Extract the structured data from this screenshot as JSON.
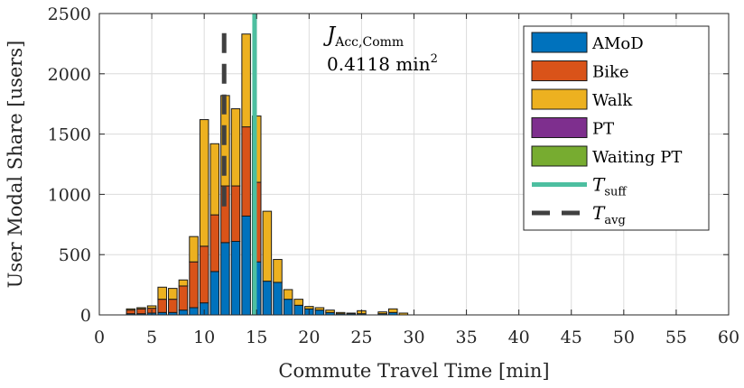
{
  "chart_data": {
    "type": "bar",
    "stacked": true,
    "xlabel": "Commute Travel Time [min]",
    "ylabel": "User Modal Share [users]",
    "xlim": [
      0,
      60
    ],
    "ylim": [
      0,
      2500
    ],
    "xticks": [
      0,
      5,
      10,
      15,
      20,
      25,
      30,
      35,
      40,
      45,
      50,
      55,
      60
    ],
    "yticks": [
      0,
      500,
      1000,
      1500,
      2000,
      2500
    ],
    "grid": true,
    "bin_width": 1,
    "x": [
      3,
      4,
      5,
      6,
      7,
      8,
      9,
      10,
      11,
      12,
      13,
      14,
      15,
      16,
      17,
      18,
      19,
      20,
      21,
      22,
      23,
      24,
      25,
      26,
      27,
      28,
      29,
      30
    ],
    "series": [
      {
        "name": "AMoD",
        "color": "#0072BD",
        "values": [
          10,
          10,
          15,
          20,
          20,
          40,
          60,
          100,
          360,
          600,
          610,
          820,
          440,
          280,
          270,
          130,
          80,
          50,
          40,
          20,
          10,
          10,
          10,
          0,
          10,
          20,
          0,
          0
        ]
      },
      {
        "name": "Bike",
        "color": "#D95319",
        "values": [
          30,
          40,
          40,
          110,
          110,
          200,
          380,
          470,
          470,
          470,
          460,
          740,
          660,
          0,
          0,
          0,
          0,
          0,
          0,
          0,
          0,
          0,
          0,
          0,
          0,
          0,
          0,
          0
        ]
      },
      {
        "name": "Walk",
        "color": "#EDB120",
        "values": [
          10,
          10,
          20,
          100,
          90,
          50,
          210,
          1050,
          590,
          750,
          640,
          770,
          550,
          0,
          0,
          0,
          0,
          0,
          0,
          0,
          0,
          0,
          0,
          0,
          0,
          0,
          0,
          0
        ]
      },
      {
        "name": "PT",
        "color": "#7E2F8E",
        "values": [
          0,
          0,
          0,
          0,
          0,
          0,
          0,
          0,
          0,
          0,
          0,
          0,
          0,
          0,
          0,
          0,
          0,
          0,
          0,
          0,
          0,
          0,
          0,
          0,
          0,
          0,
          0,
          0
        ]
      },
      {
        "name": "Waiting PT",
        "color": "#77AC30",
        "values": [
          0,
          0,
          0,
          0,
          0,
          0,
          0,
          0,
          0,
          0,
          0,
          0,
          0,
          0,
          0,
          0,
          0,
          0,
          0,
          0,
          0,
          0,
          0,
          0,
          0,
          0,
          0,
          0
        ]
      }
    ],
    "unstacked_bins": {
      "x": [
        16,
        17,
        18,
        19,
        20,
        21,
        22,
        23,
        24,
        25,
        26,
        27,
        28,
        29
      ],
      "totals": [
        860,
        460,
        210,
        130,
        70,
        60,
        40,
        20,
        15,
        35,
        0,
        25,
        50,
        15
      ],
      "color": "#EDB120"
    },
    "reference_lines": [
      {
        "name": "T_suff",
        "x": 14.8,
        "color": "#4DBFA0",
        "style": "solid"
      },
      {
        "name": "T_avg",
        "x": 11.9,
        "color": "#404040",
        "style": "dashed",
        "y_range": [
          900,
          2370
        ]
      }
    ],
    "legend": {
      "placement": "top-right",
      "entries": [
        "AMoD",
        "Bike",
        "Walk",
        "PT",
        "Waiting PT",
        "T_suff",
        "T_avg"
      ]
    },
    "annotation": {
      "symbol": "J",
      "subscript": "Acc,Comm",
      "value": "0.4118",
      "unit": "min",
      "exponent": "2"
    }
  }
}
